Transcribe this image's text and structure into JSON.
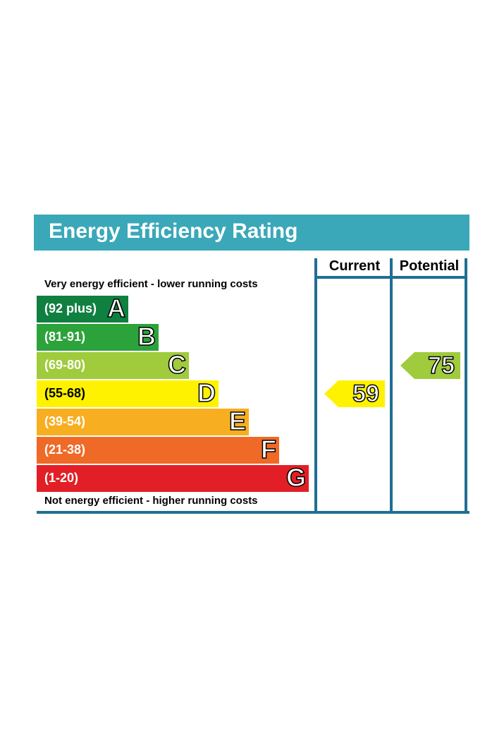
{
  "title": "Energy Efficiency Rating",
  "columns": {
    "current": "Current",
    "potential": "Potential"
  },
  "top_note": "Very energy efficient - lower running costs",
  "bottom_note": "Not energy efficient - higher running costs",
  "bands": [
    {
      "letter": "A",
      "range": "(92 plus)",
      "color": "#0f8040"
    },
    {
      "letter": "B",
      "range": "(81-91)",
      "color": "#2ca33a"
    },
    {
      "letter": "C",
      "range": "(69-80)",
      "color": "#9fcb3c"
    },
    {
      "letter": "D",
      "range": "(55-68)",
      "color": "#fff200"
    },
    {
      "letter": "E",
      "range": "(39-54)",
      "color": "#f7ae21"
    },
    {
      "letter": "F",
      "range": "(21-38)",
      "color": "#ef6a26"
    },
    {
      "letter": "G",
      "range": "(1-20)",
      "color": "#e21f26"
    }
  ],
  "chart_data": {
    "type": "bar",
    "title": "Energy Efficiency Rating",
    "categories": [
      "A",
      "B",
      "C",
      "D",
      "E",
      "F",
      "G"
    ],
    "ranges": [
      "(92 plus)",
      "(81-91)",
      "(69-80)",
      "(55-68)",
      "(39-54)",
      "(21-38)",
      "(1-20)"
    ],
    "current": {
      "value": 59,
      "band": "D",
      "color": "#fff200"
    },
    "potential": {
      "value": 75,
      "band": "C",
      "color": "#9fcb3c"
    }
  },
  "accent_color": "#3aa8b8",
  "line_color": "#1f6f92"
}
